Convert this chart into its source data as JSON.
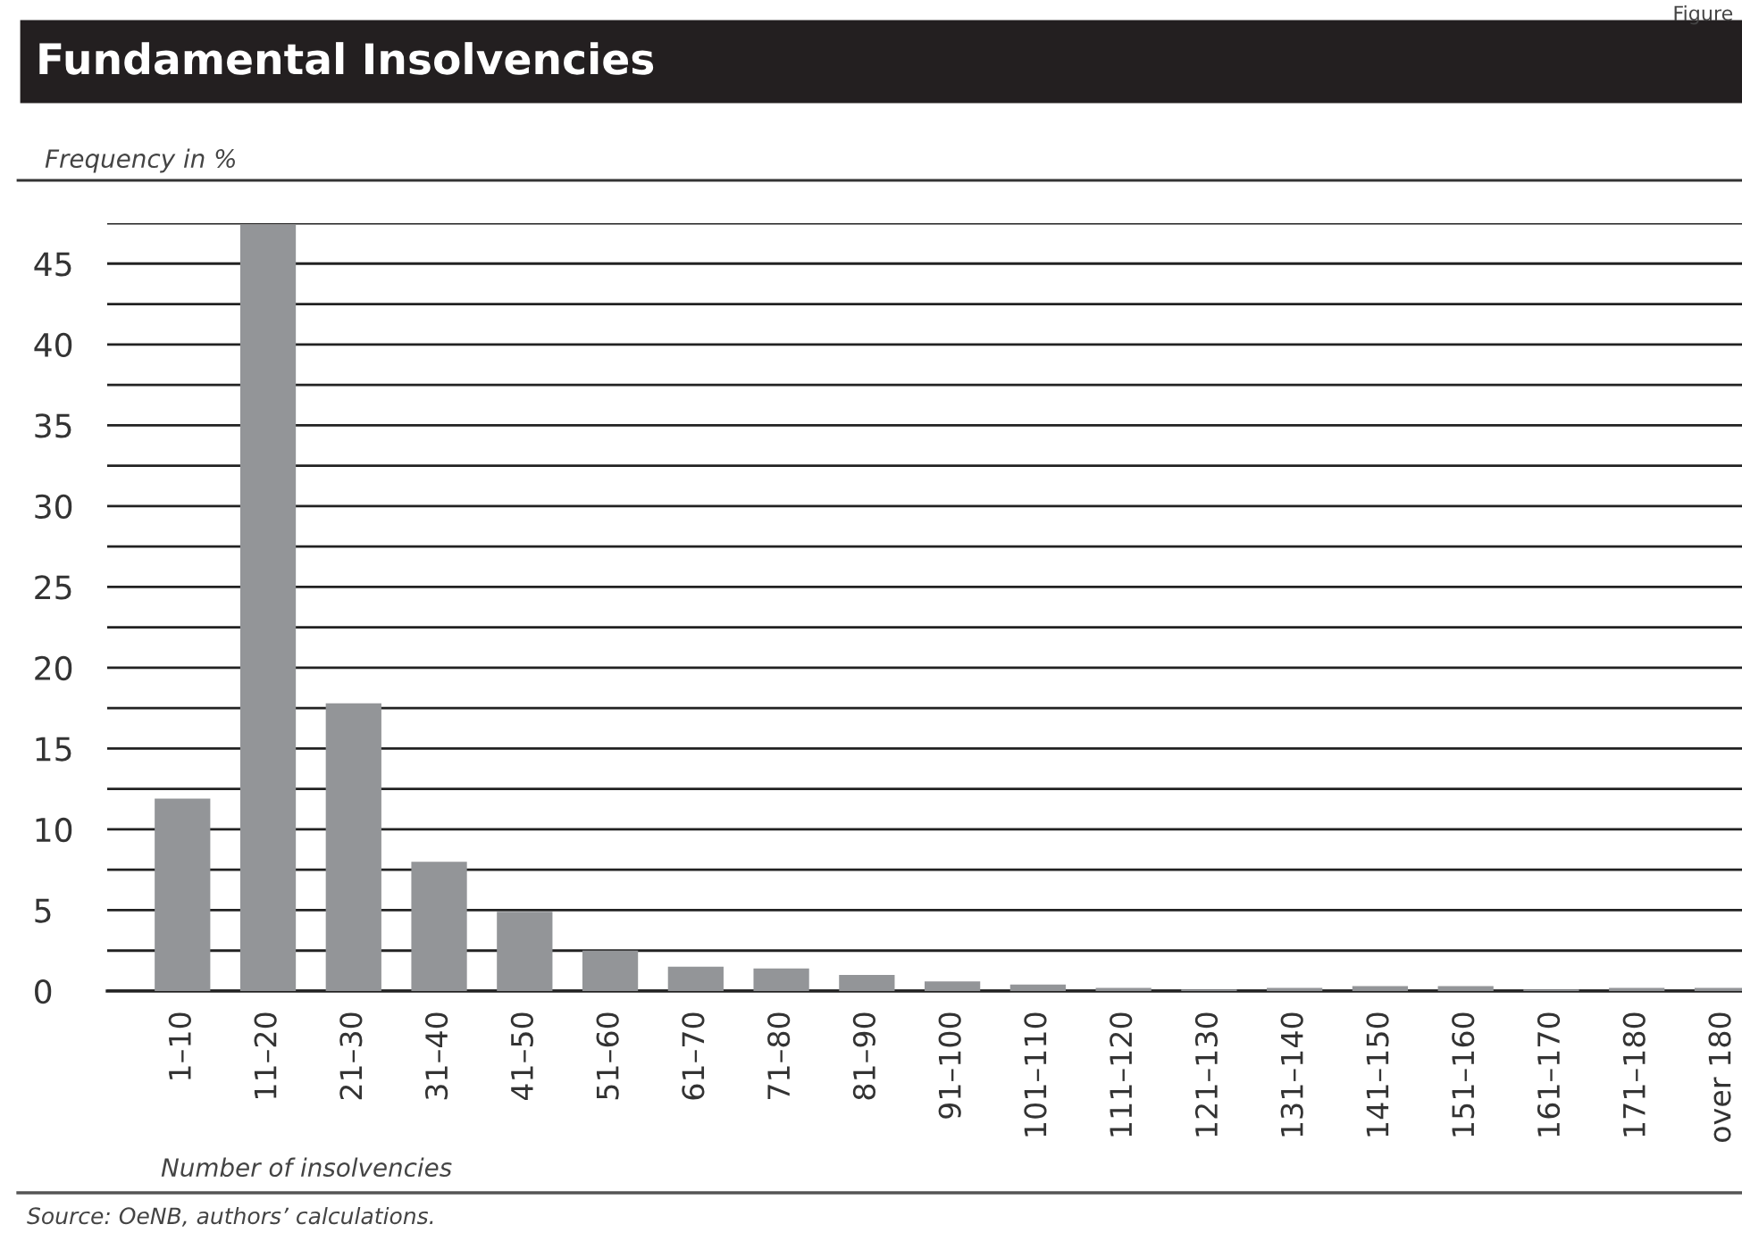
{
  "chart_data": {
    "type": "bar",
    "title": "Fundamental Insolvencies",
    "ylabel": "Frequency in %",
    "xlabel": "Number of insolvencies",
    "annotations": [
      "Figure",
      "Source: OeNB, authors’ calculations."
    ],
    "categories": [
      "1–10",
      "11–20",
      "21–30",
      "31–40",
      "41–50",
      "51–60",
      "61–70",
      "71–80",
      "81–90",
      "91–100",
      "101–110",
      "111–120",
      "121–130",
      "131–140",
      "141–150",
      "151–160",
      "161–170",
      "171–180",
      "over 180"
    ],
    "values": [
      11.9,
      47.4,
      17.8,
      8.0,
      4.9,
      2.5,
      1.5,
      1.4,
      1.0,
      0.6,
      0.4,
      0.2,
      0.1,
      0.2,
      0.3,
      0.3,
      0.1,
      0.2,
      0.2
    ],
    "color": "#939598",
    "ylim": [
      0,
      47.5
    ],
    "yticks": [
      0,
      {
        "value": 2.5,
        "label": null
      },
      5,
      {
        "value": 7.5,
        "label": null
      },
      10,
      {
        "value": 12.5,
        "label": null
      },
      15,
      {
        "value": 17.5,
        "label": null
      },
      20,
      {
        "value": 22.5,
        "label": null
      },
      25,
      {
        "value": 27.5,
        "label": null
      },
      30,
      {
        "value": 32.5,
        "label": null
      },
      35,
      {
        "value": 37.5,
        "label": null
      },
      40,
      {
        "value": 42.5,
        "label": null
      },
      45,
      {
        "value": 47.5,
        "label": null
      }
    ],
    "grid": "y",
    "legend": false
  }
}
